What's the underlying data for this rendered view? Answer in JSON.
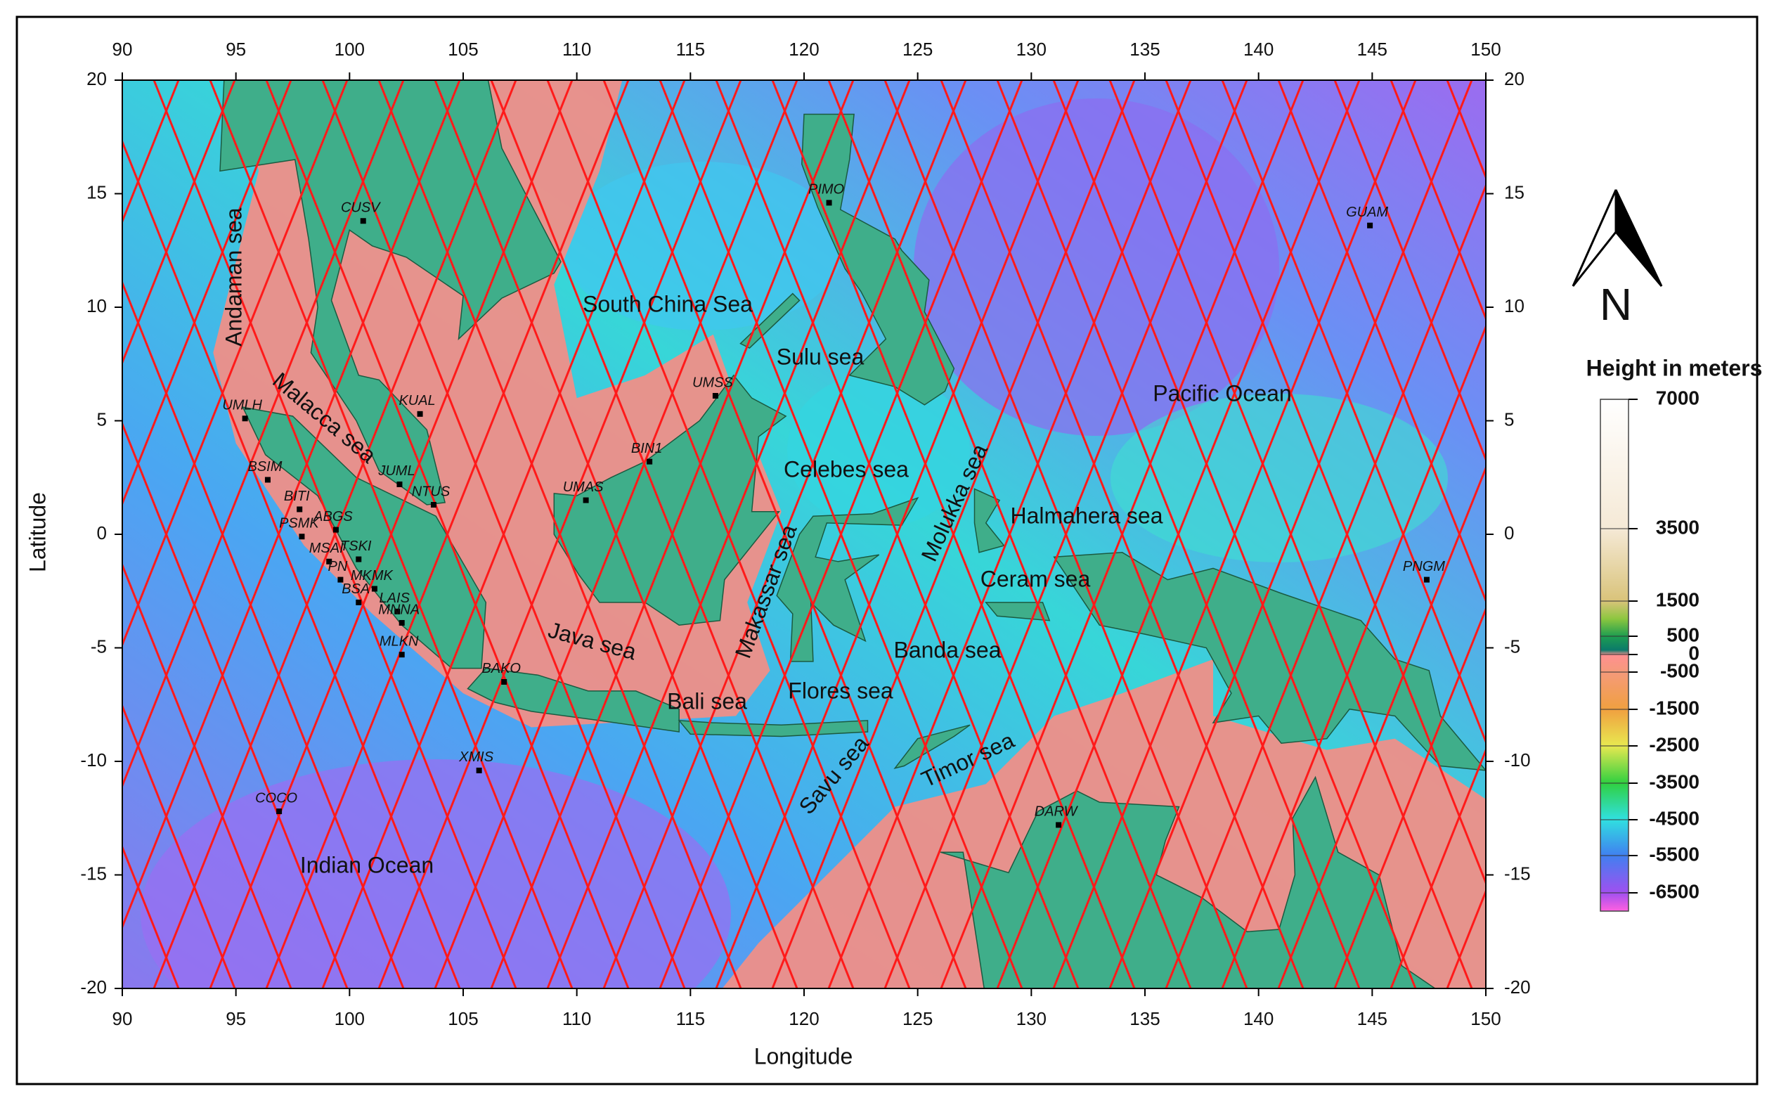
{
  "map": {
    "xlim": [
      90,
      150
    ],
    "ylim": [
      -20,
      20
    ],
    "xticks": [
      90,
      95,
      100,
      105,
      110,
      115,
      120,
      125,
      130,
      135,
      140,
      145,
      150
    ],
    "yticks": [
      20,
      15,
      10,
      5,
      0,
      -5,
      -10,
      -15,
      -20
    ],
    "xlabel": "Longitude",
    "ylabel": "Latitude",
    "regions": [
      "Andaman sea",
      "Malacca sea",
      "South China Sea",
      "Sulu sea",
      "Pacific Ocean",
      "Celebes sea",
      "Molukka sea",
      "Halmahera sea",
      "Makassar sea",
      "Ceram sea",
      "Java sea",
      "Banda sea",
      "Bali sea",
      "Flores sea",
      "Savu sea",
      "Timor sea",
      "Indian Ocean"
    ],
    "stations": [
      {
        "name": "PIMO",
        "lon": 121.1,
        "lat": 14.6
      },
      {
        "name": "CUSV",
        "lon": 100.6,
        "lat": 13.8
      },
      {
        "name": "GUAM",
        "lon": 144.9,
        "lat": 13.6
      },
      {
        "name": "UMSS",
        "lon": 116.1,
        "lat": 6.1
      },
      {
        "name": "KUAL",
        "lon": 103.1,
        "lat": 5.3
      },
      {
        "name": "UMLH",
        "lon": 95.4,
        "lat": 5.1
      },
      {
        "name": "BIN1",
        "lon": 113.2,
        "lat": 3.2
      },
      {
        "name": "BSIM",
        "lon": 96.4,
        "lat": 2.4
      },
      {
        "name": "JUML",
        "lon": 102.2,
        "lat": 2.2
      },
      {
        "name": "UMAS",
        "lon": 110.4,
        "lat": 1.5
      },
      {
        "name": "NTUS",
        "lon": 103.7,
        "lat": 1.3
      },
      {
        "name": "BITI",
        "lon": 97.8,
        "lat": 1.1
      },
      {
        "name": "ABGS",
        "lon": 99.4,
        "lat": 0.2
      },
      {
        "name": "PSMK",
        "lon": 97.9,
        "lat": -0.1
      },
      {
        "name": "TSKI",
        "lon": 100.4,
        "lat": -1.1
      },
      {
        "name": "MSAI",
        "lon": 99.1,
        "lat": -1.2
      },
      {
        "name": "PNGM",
        "lon": 147.4,
        "lat": -2.0
      },
      {
        "name": "PN",
        "lon": 99.6,
        "lat": -2.0
      },
      {
        "name": "MKMK",
        "lon": 101.1,
        "lat": -2.4
      },
      {
        "name": "BSA",
        "lon": 100.4,
        "lat": -3.0
      },
      {
        "name": "LAIS",
        "lon": 102.1,
        "lat": -3.4
      },
      {
        "name": "MNNA",
        "lon": 102.3,
        "lat": -3.9
      },
      {
        "name": "MLKN",
        "lon": 102.3,
        "lat": -5.3
      },
      {
        "name": "BAKO",
        "lon": 106.8,
        "lat": -6.5
      },
      {
        "name": "XMIS",
        "lon": 105.7,
        "lat": -10.4
      },
      {
        "name": "COCO",
        "lon": 96.9,
        "lat": -12.2
      },
      {
        "name": "DARW",
        "lon": 131.2,
        "lat": -12.8
      }
    ]
  },
  "legend": {
    "title": "Height in meters",
    "ticks": [
      7000,
      3500,
      1500,
      500,
      0,
      -500,
      -1500,
      -2500,
      -3500,
      -4500,
      -5500,
      -6500
    ]
  },
  "north": "N"
}
